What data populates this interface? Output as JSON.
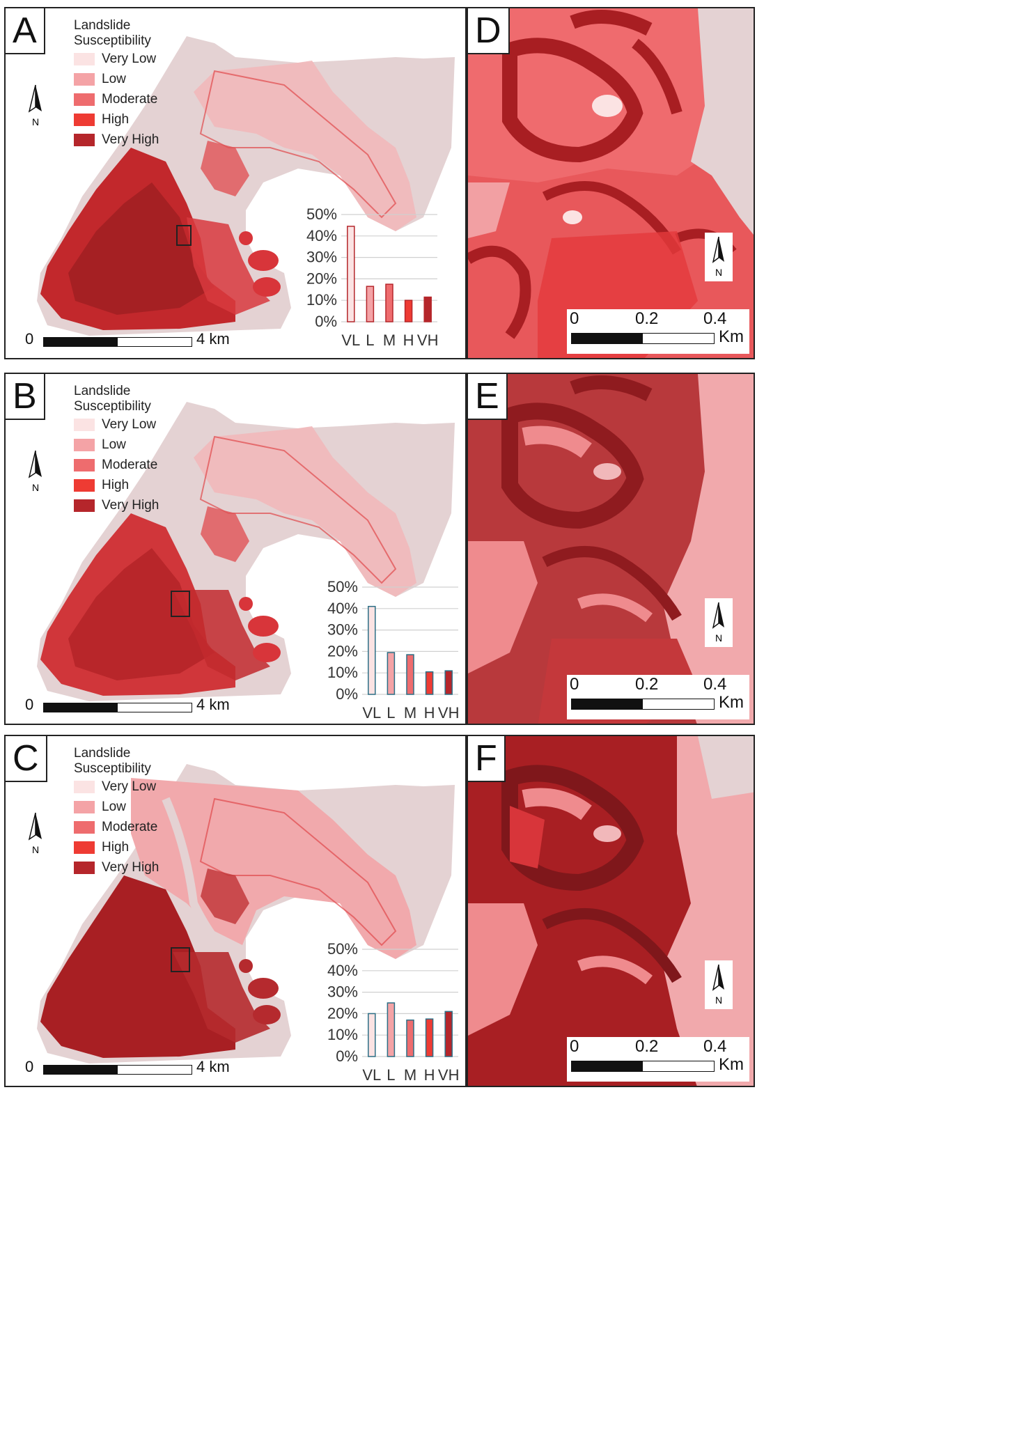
{
  "legend": {
    "title_line1": "Landslide",
    "title_line2": "Susceptibility",
    "items": [
      {
        "label": "Very Low",
        "color": "#fbe3e3"
      },
      {
        "label": "Low",
        "color": "#f4a3a6"
      },
      {
        "label": "Moderate",
        "color": "#ee6c6e"
      },
      {
        "label": "High",
        "color": "#ee3b33"
      },
      {
        "label": "Very High",
        "color": "#b5262b"
      }
    ]
  },
  "north_label": "N",
  "map_scale": {
    "zero": "0",
    "unit": "4 km"
  },
  "zoom_scale": {
    "t0": "0",
    "t1": "0.2",
    "t2": "0.4",
    "unit": "Km"
  },
  "panels": {
    "A": {
      "letter": "A"
    },
    "B": {
      "letter": "B"
    },
    "C": {
      "letter": "C"
    },
    "D": {
      "letter": "D"
    },
    "E": {
      "letter": "E"
    },
    "F": {
      "letter": "F"
    }
  },
  "chart_data": [
    {
      "type": "bar",
      "panel": "A",
      "categories": [
        "VL",
        "L",
        "M",
        "H",
        "VH"
      ],
      "values": [
        44.5,
        16.5,
        17.5,
        10,
        11.5
      ],
      "ylim": [
        0,
        50
      ],
      "yticks": [
        "0%",
        "10%",
        "20%",
        "30%",
        "40%",
        "50%"
      ],
      "bar_colors": [
        "#fbe3e3",
        "#f4a3a6",
        "#ee6c6e",
        "#ee3b33",
        "#b5262b"
      ],
      "bar_outline": "#b5262b",
      "grid": true
    },
    {
      "type": "bar",
      "panel": "B",
      "categories": [
        "VL",
        "L",
        "M",
        "H",
        "VH"
      ],
      "values": [
        41,
        19.5,
        18.5,
        10.5,
        11
      ],
      "ylim": [
        0,
        50
      ],
      "yticks": [
        "0%",
        "10%",
        "20%",
        "30%",
        "40%",
        "50%"
      ],
      "bar_colors": [
        "#fbe3e3",
        "#f4a3a6",
        "#ee6c6e",
        "#ee3b33",
        "#b5262b"
      ],
      "bar_outline": "#2d6f86",
      "grid": true
    },
    {
      "type": "bar",
      "panel": "C",
      "categories": [
        "VL",
        "L",
        "M",
        "H",
        "VH"
      ],
      "values": [
        20,
        25,
        17,
        17.5,
        21
      ],
      "ylim": [
        0,
        50
      ],
      "yticks": [
        "0%",
        "10%",
        "20%",
        "30%",
        "40%",
        "50%"
      ],
      "bar_colors": [
        "#fbe3e3",
        "#f4a3a6",
        "#ee6c6e",
        "#ee3b33",
        "#b5262b"
      ],
      "bar_outline": "#2d6f86",
      "grid": true
    }
  ]
}
